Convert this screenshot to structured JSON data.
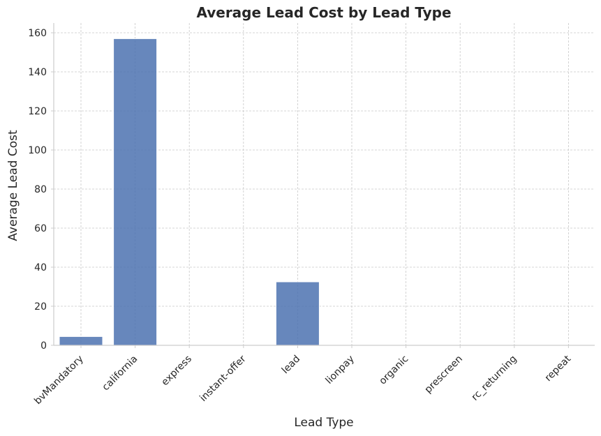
{
  "chart_data": {
    "type": "bar",
    "title": "Average Lead Cost by Lead Type",
    "xlabel": "Lead Type",
    "ylabel": "Average Lead Cost",
    "categories": [
      "bvMandatory",
      "california",
      "express",
      "instant-offer",
      "lead",
      "lionpay",
      "organic",
      "prescreen",
      "rc_returning",
      "repeat"
    ],
    "values": [
      4.5,
      157,
      0,
      0,
      32.5,
      0,
      0,
      0,
      0,
      0
    ],
    "ylim": [
      0,
      165
    ],
    "yticks": [
      0,
      20,
      40,
      60,
      80,
      100,
      120,
      140,
      160
    ],
    "bar_color": "#4c72b0",
    "grid": true,
    "x_tick_rotation_deg": 45
  }
}
